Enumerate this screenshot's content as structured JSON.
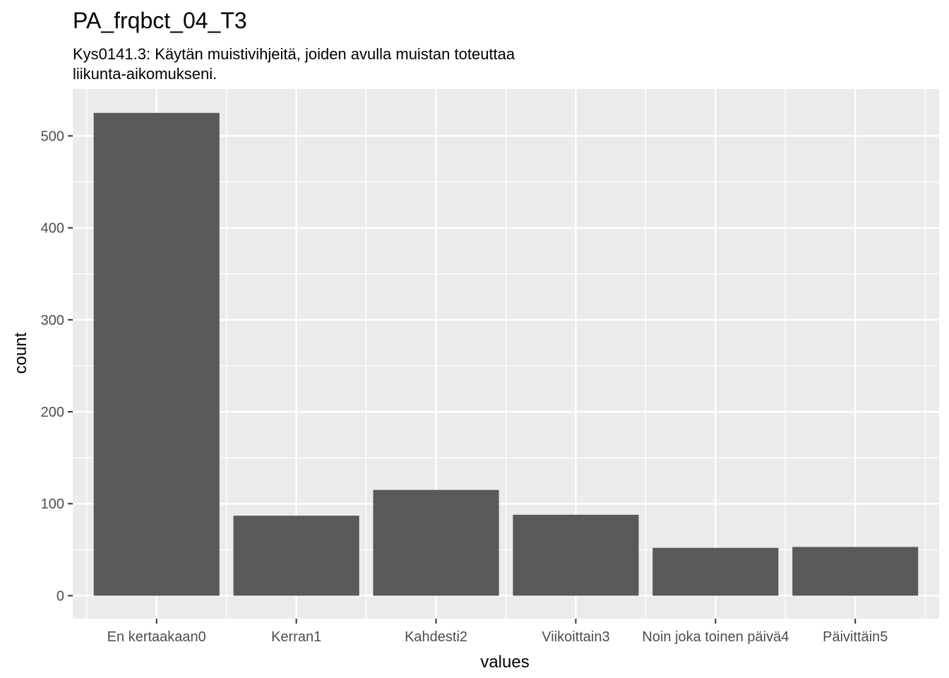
{
  "chart_data": {
    "type": "bar",
    "title": "PA_frqbct_04_T3",
    "subtitle_lines": [
      "Kys0141.3: Käytän muistivihjeitä, joiden avulla muistan toteuttaa",
      "liikunta-aikomukseni."
    ],
    "xlabel": "values",
    "ylabel": "count",
    "categories": [
      "En kertaakaan0",
      "Kerran1",
      "Kahdesti2",
      "Viikoittain3",
      "Noin joka toinen päivä4",
      "Päivittäin5"
    ],
    "values": [
      525,
      87,
      115,
      88,
      52,
      53
    ],
    "ylim": [
      -25,
      551
    ],
    "yticks": [
      0,
      100,
      200,
      300,
      400,
      500
    ],
    "grid": true,
    "bar_color": "#595959",
    "panel_color": "#ebebeb",
    "grid_color": "#ffffff"
  }
}
